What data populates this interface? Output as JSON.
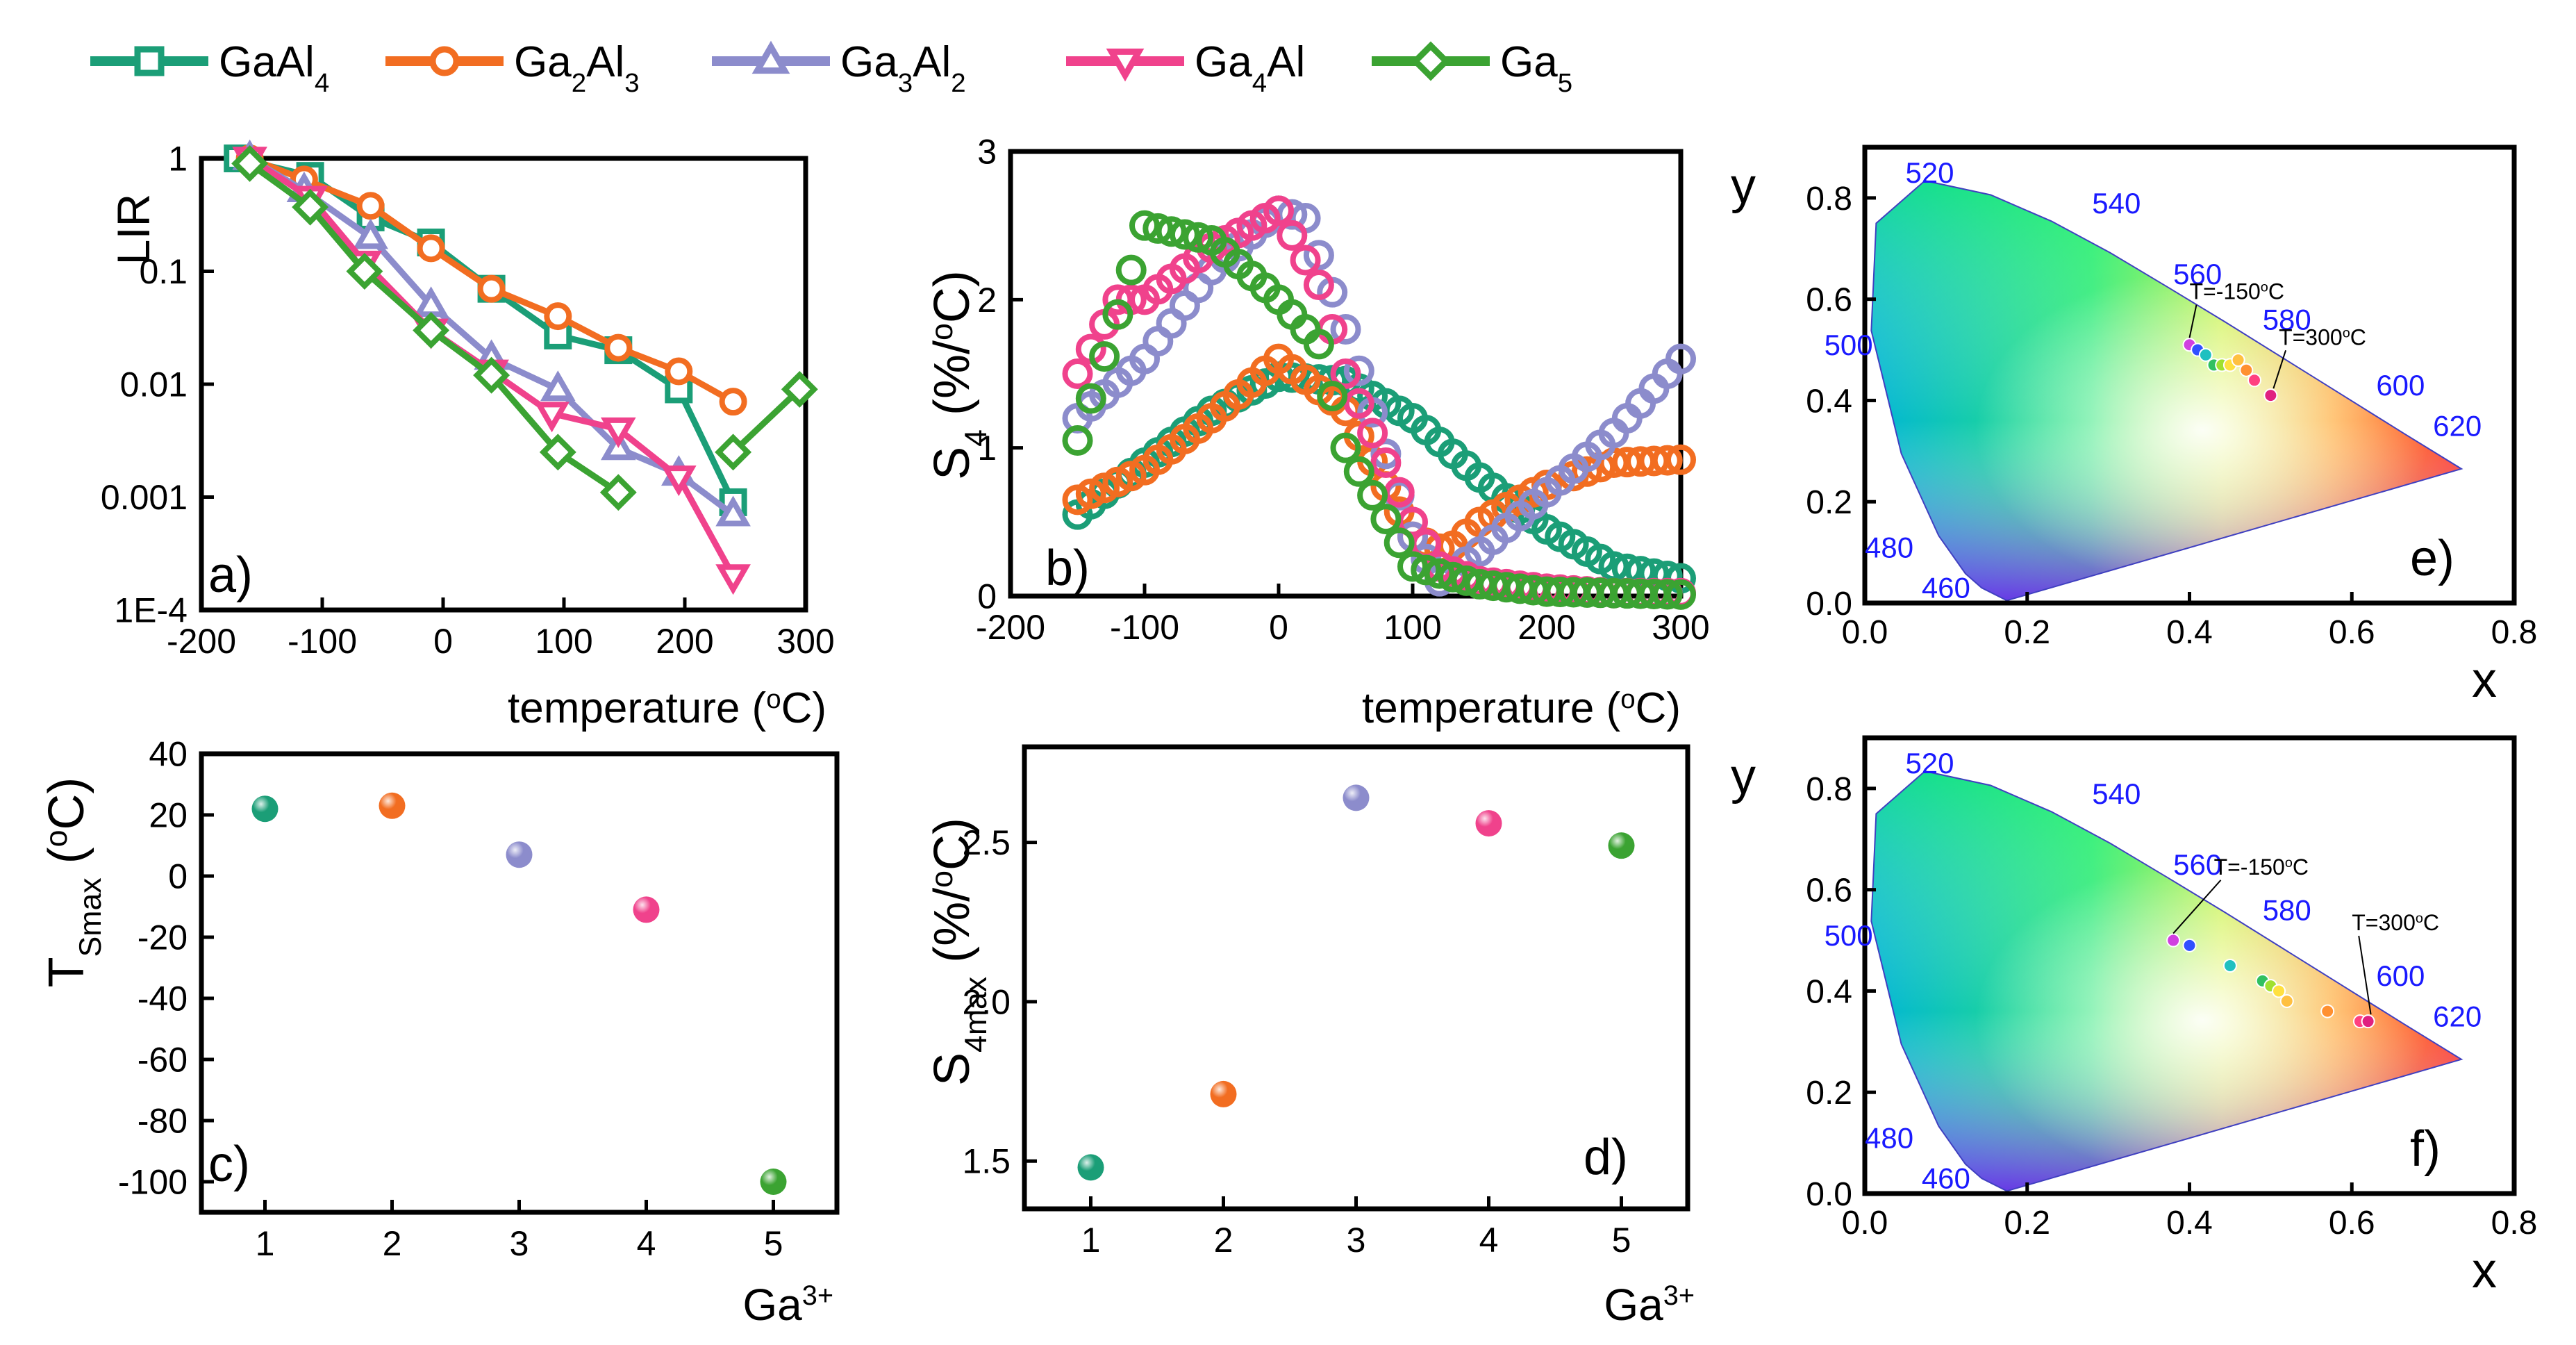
{
  "figure": {
    "legend": [
      {
        "label": "GaAl4",
        "base": "GaAl",
        "sub": "4",
        "color": "#1b9e77",
        "marker": "square"
      },
      {
        "label": "Ga2Al3",
        "base": "Ga",
        "sub": "2",
        "base2": "Al",
        "sub2": "3",
        "color": "#f26d21",
        "marker": "circle"
      },
      {
        "label": "Ga3Al2",
        "base": "Ga",
        "sub": "3",
        "base2": "Al",
        "sub2": "2",
        "color": "#8c8ccc",
        "marker": "triangle"
      },
      {
        "label": "Ga4Al",
        "base": "Ga",
        "sub": "4",
        "base2": "Al",
        "sub2": "",
        "color": "#f0428c",
        "marker": "triangle-down"
      },
      {
        "label": "Ga5",
        "base": "Ga",
        "sub": "5",
        "color": "#3ba332",
        "marker": "diamond"
      }
    ]
  },
  "chart_data": [
    {
      "panel": "a)",
      "type": "line",
      "yscale": "log",
      "xlabel": "temperature (°C)",
      "ylabel": "LIR",
      "xlim": [
        -200,
        300
      ],
      "ylim": [
        0.0001,
        1
      ],
      "xticks": [
        "-200",
        "-100",
        "0",
        "100",
        "200",
        "300"
      ],
      "yticks": [
        "1E-4",
        "0.001",
        "0.01",
        "0.1",
        "1"
      ],
      "series": [
        {
          "name": "GaAl4",
          "x": [
            -170,
            -110,
            -60,
            -10,
            40,
            95,
            145,
            195,
            240
          ],
          "y": [
            1.0,
            0.7,
            0.3,
            0.18,
            0.07,
            0.027,
            0.02,
            0.009,
            0.0009
          ]
        },
        {
          "name": "Ga2Al3",
          "x": [
            -160,
            -115,
            -60,
            -10,
            40,
            95,
            145,
            195,
            240
          ],
          "y": [
            1.0,
            0.65,
            0.38,
            0.16,
            0.07,
            0.04,
            0.021,
            0.013,
            0.007
          ]
        },
        {
          "name": "Ga3Al2",
          "x": [
            -160,
            -115,
            -60,
            -10,
            40,
            95,
            145,
            195,
            240
          ],
          "y": [
            1.0,
            0.52,
            0.2,
            0.05,
            0.017,
            0.009,
            0.0027,
            0.0016,
            0.0007
          ]
        },
        {
          "name": "Ga4Al",
          "x": [
            -160,
            -110,
            -65,
            -10,
            40,
            90,
            145,
            195,
            240
          ],
          "y": [
            1.0,
            0.45,
            0.12,
            0.03,
            0.013,
            0.0055,
            0.004,
            0.0015,
            0.0002
          ]
        },
        {
          "name": "Ga5",
          "x": [
            -160,
            -110,
            -65,
            -10,
            40,
            95,
            145,
            240,
            295
          ],
          "y": [
            0.9,
            0.37,
            0.1,
            0.03,
            0.012,
            0.0025,
            0.0011,
            0.0025,
            0.009
          ]
        }
      ]
    },
    {
      "panel": "b)",
      "type": "scatter",
      "xlabel": "temperature (°C)",
      "ylabel": "S4 (%/°C)",
      "xlim": [
        -200,
        300
      ],
      "ylim": [
        0,
        3
      ],
      "xticks": [
        "-200",
        "-100",
        "0",
        "100",
        "200",
        "300"
      ],
      "yticks": [
        "0",
        "1",
        "2",
        "3"
      ],
      "series": [
        {
          "name": "GaAl4",
          "x": [
            -150,
            -100,
            -50,
            0,
            50,
            100,
            150,
            200,
            250,
            300
          ],
          "y": [
            0.55,
            0.9,
            1.25,
            1.48,
            1.45,
            1.2,
            0.8,
            0.45,
            0.2,
            0.12
          ]
        },
        {
          "name": "Ga2Al3",
          "x": [
            -150,
            -100,
            -50,
            0,
            50,
            100,
            125,
            150,
            200,
            250,
            300
          ],
          "y": [
            0.65,
            0.85,
            1.2,
            1.6,
            1.25,
            0.4,
            0.3,
            0.5,
            0.75,
            0.9,
            0.92
          ]
        },
        {
          "name": "Ga3Al2",
          "x": [
            -150,
            -100,
            -50,
            0,
            20,
            50,
            100,
            120,
            150,
            200,
            250,
            300
          ],
          "y": [
            1.2,
            1.6,
            2.2,
            2.6,
            2.55,
            1.8,
            0.4,
            0.1,
            0.3,
            0.7,
            1.1,
            1.6
          ]
        },
        {
          "name": "Ga4Al",
          "x": [
            -150,
            -120,
            -100,
            -50,
            0,
            30,
            50,
            100,
            120,
            150,
            200,
            250,
            300
          ],
          "y": [
            1.5,
            2.0,
            2.0,
            2.35,
            2.6,
            2.1,
            1.5,
            0.5,
            0.2,
            0.1,
            0.05,
            0.02,
            0.02
          ]
        },
        {
          "name": "Ga5",
          "x": [
            -150,
            -120,
            -100,
            -50,
            0,
            30,
            50,
            100,
            150,
            200,
            250,
            300
          ],
          "y": [
            1.05,
            1.9,
            2.5,
            2.4,
            2.0,
            1.7,
            1.0,
            0.2,
            0.08,
            0.03,
            0.02,
            0.01
          ]
        }
      ]
    },
    {
      "panel": "c)",
      "type": "scatter",
      "xlabel": "Ga3+",
      "ylabel": "TSmax (°C)",
      "xlim": [
        0.5,
        5.5
      ],
      "ylim": [
        -110,
        40
      ],
      "xticks": [
        "1",
        "2",
        "3",
        "4",
        "5"
      ],
      "yticks": [
        "-100",
        "-80",
        "-60",
        "-40",
        "-20",
        "0",
        "20",
        "40"
      ],
      "series": [
        {
          "name": "points",
          "x": [
            1,
            2,
            3,
            4,
            5
          ],
          "y": [
            22,
            23,
            7,
            -11,
            -100
          ]
        }
      ]
    },
    {
      "panel": "d)",
      "type": "scatter",
      "xlabel": "Ga3+",
      "ylabel": "S4max (%/°C)",
      "xlim": [
        0.5,
        5.5
      ],
      "ylim": [
        1.35,
        2.8
      ],
      "xticks": [
        "1",
        "2",
        "3",
        "4",
        "5"
      ],
      "yticks": [
        "1.5",
        "2.0",
        "2.5"
      ],
      "series": [
        {
          "name": "points",
          "x": [
            1,
            2,
            3,
            4,
            5
          ],
          "y": [
            1.48,
            1.71,
            2.64,
            2.56,
            2.49
          ]
        }
      ]
    },
    {
      "panel": "e)",
      "type": "scatter",
      "xlabel": "x",
      "ylabel": "y",
      "xlim": [
        0,
        0.8
      ],
      "ylim": [
        0,
        0.9
      ],
      "xticks": [
        "0.0",
        "0.2",
        "0.4",
        "0.6",
        "0.8"
      ],
      "yticks": [
        "0.0",
        "0.2",
        "0.4",
        "0.6",
        "0.8"
      ],
      "wavelength_labels": [
        "460",
        "480",
        "500",
        "520",
        "540",
        "560",
        "580",
        "600",
        "620"
      ],
      "annotations": [
        "T=-150°C",
        "T=300°C"
      ],
      "series": [
        {
          "name": "CIE points",
          "x": [
            0.4,
            0.41,
            0.42,
            0.43,
            0.44,
            0.45,
            0.46,
            0.47,
            0.48,
            0.5
          ],
          "y": [
            0.51,
            0.5,
            0.49,
            0.47,
            0.47,
            0.47,
            0.48,
            0.46,
            0.44,
            0.41
          ]
        }
      ]
    },
    {
      "panel": "f)",
      "type": "scatter",
      "xlabel": "x",
      "ylabel": "y",
      "xlim": [
        0,
        0.8
      ],
      "ylim": [
        0,
        0.9
      ],
      "xticks": [
        "0.0",
        "0.2",
        "0.4",
        "0.6",
        "0.8"
      ],
      "yticks": [
        "0.0",
        "0.2",
        "0.4",
        "0.6",
        "0.8"
      ],
      "wavelength_labels": [
        "460",
        "480",
        "500",
        "520",
        "540",
        "560",
        "580",
        "600",
        "620"
      ],
      "annotations": [
        "T=-150°C",
        "T=300°C"
      ],
      "series": [
        {
          "name": "CIE points",
          "x": [
            0.38,
            0.4,
            0.45,
            0.49,
            0.5,
            0.51,
            0.52,
            0.57,
            0.61,
            0.62
          ],
          "y": [
            0.5,
            0.49,
            0.45,
            0.42,
            0.41,
            0.4,
            0.38,
            0.36,
            0.34,
            0.34
          ]
        }
      ]
    }
  ]
}
